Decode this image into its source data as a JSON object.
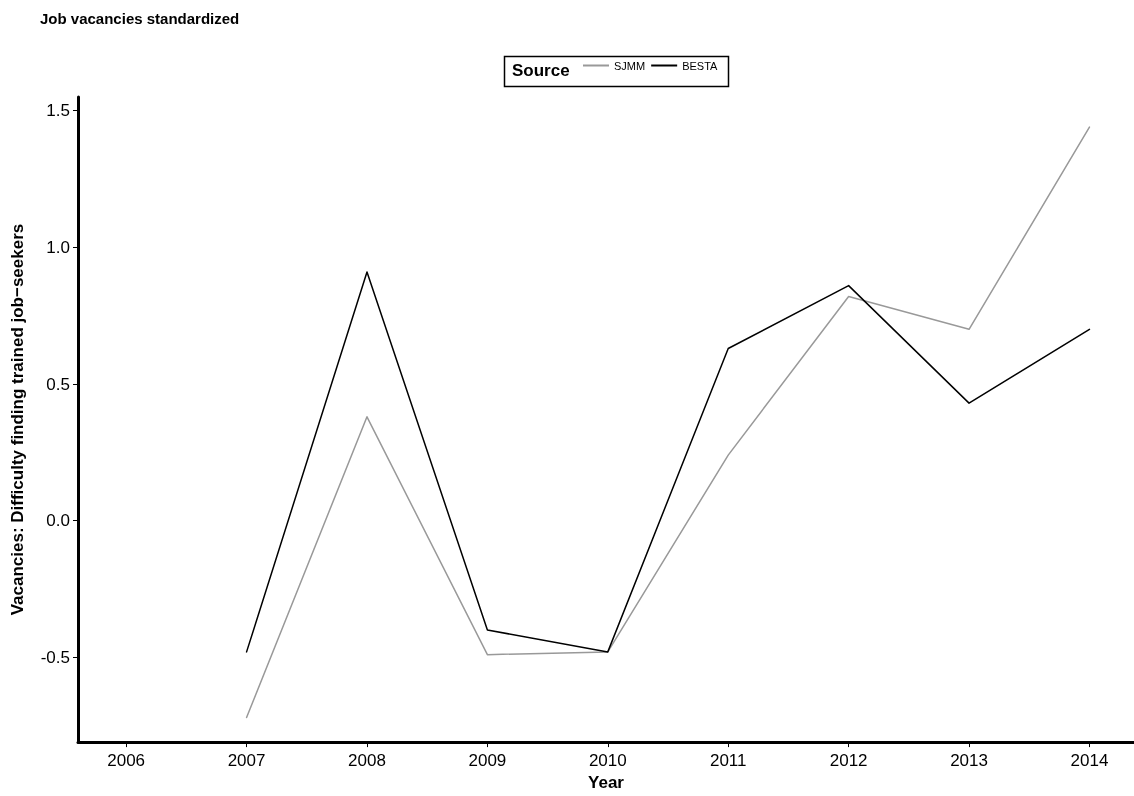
{
  "chart_data": {
    "type": "line",
    "title": "Job vacancies standardized",
    "xlabel": "Year",
    "ylabel": "Vacancies: Difficulty finding trained job−seekers",
    "legend_title": "Source",
    "legend": "top",
    "grid": false,
    "marker": "none",
    "line_style": "solid",
    "x": [
      2007,
      2008,
      2009,
      2010,
      2011,
      2012,
      2013,
      2014
    ],
    "xlim": [
      2005.6,
      2014.37
    ],
    "xticks": [
      2006,
      2007,
      2008,
      2009,
      2010,
      2011,
      2012,
      2013,
      2014
    ],
    "ylim": [
      -0.81,
      1.55
    ],
    "yticks": [
      {
        "value": -0.5,
        "label": "-0.5"
      },
      {
        "value": 0,
        "label": "0.0"
      },
      {
        "value": 0.5,
        "label": "0.5"
      },
      {
        "value": 1,
        "label": "1.0"
      },
      {
        "value": 1.5,
        "label": "1.5"
      }
    ],
    "series": [
      {
        "name": "SJMM",
        "color": "#999999",
        "values": [
          -0.72,
          0.38,
          -0.49,
          -0.48,
          0.24,
          0.82,
          0.7,
          1.44
        ]
      },
      {
        "name": "BESTA",
        "color": "#000000",
        "values": [
          -0.48,
          0.91,
          -0.4,
          -0.48,
          0.63,
          0.86,
          0.43,
          0.7
        ]
      }
    ]
  }
}
